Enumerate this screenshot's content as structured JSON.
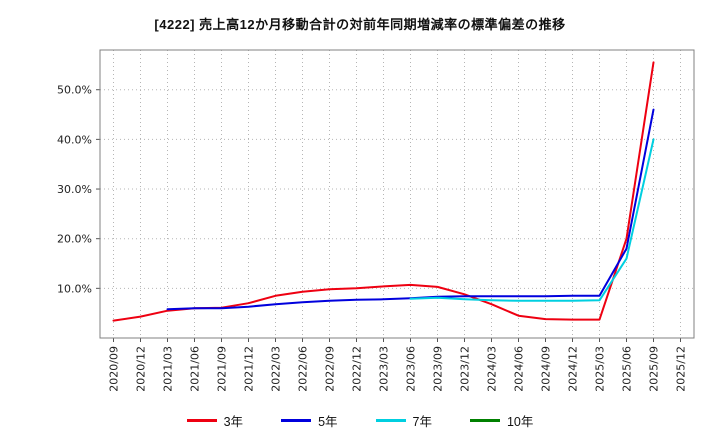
{
  "chart_data": {
    "type": "line",
    "title": "[4222]  売上高12か月移動合計の対前年同期増減率の標準偏差の推移",
    "categories": [
      "2020/09",
      "2020/12",
      "2021/03",
      "2021/06",
      "2021/09",
      "2021/12",
      "2022/03",
      "2022/06",
      "2022/09",
      "2022/12",
      "2023/03",
      "2023/06",
      "2023/09",
      "2023/12",
      "2024/03",
      "2024/06",
      "2024/09",
      "2024/12",
      "2025/03",
      "2025/06",
      "2025/09",
      "2025/12"
    ],
    "yticks": [
      10,
      20,
      30,
      40,
      50
    ],
    "ytick_suffix": "%",
    "ylim": [
      0,
      58
    ],
    "grid": true,
    "legend_position": "bottom",
    "series": [
      {
        "name": "3年",
        "color": "#ee0011",
        "values": [
          3.5,
          4.3,
          5.5,
          6.0,
          6.1,
          7.0,
          8.5,
          9.3,
          9.8,
          10.0,
          10.4,
          10.7,
          10.3,
          8.8,
          6.8,
          4.5,
          3.8,
          3.7,
          3.7,
          20.0,
          55.5,
          null
        ]
      },
      {
        "name": "5年",
        "color": "#0000dd",
        "values": [
          null,
          null,
          5.8,
          6.0,
          6.0,
          6.3,
          6.8,
          7.2,
          7.5,
          7.7,
          7.8,
          8.0,
          8.3,
          8.4,
          8.4,
          8.4,
          8.4,
          8.5,
          8.5,
          18.0,
          46.0,
          null
        ]
      },
      {
        "name": "7年",
        "color": "#00cfe0",
        "values": [
          null,
          null,
          null,
          null,
          null,
          null,
          null,
          null,
          null,
          null,
          null,
          7.9,
          8.1,
          7.8,
          7.6,
          7.5,
          7.5,
          7.5,
          7.6,
          16.0,
          40.0,
          null
        ]
      },
      {
        "name": "10年",
        "color": "#008000",
        "values": [
          null,
          null,
          null,
          null,
          null,
          null,
          null,
          null,
          null,
          null,
          null,
          null,
          null,
          null,
          null,
          null,
          null,
          null,
          null,
          null,
          null,
          null
        ]
      }
    ]
  }
}
